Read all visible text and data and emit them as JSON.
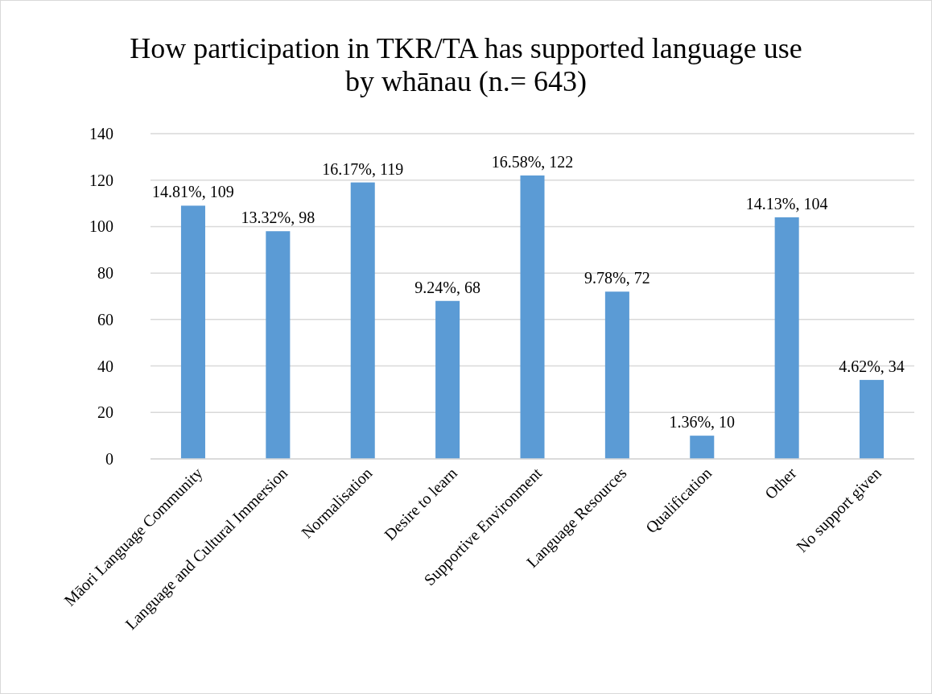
{
  "chart_data": {
    "type": "bar",
    "title": "How participation in TKR/TA has supported language use\nby whānau (n.= 643)",
    "categories": [
      "Māori Language Community",
      "Language and Cultural Immersion",
      "Normalisation",
      "Desire to learn",
      "Supportive Environment",
      "Language Resources",
      "Qualification",
      "Other",
      "No support given"
    ],
    "values": [
      109,
      98,
      119,
      68,
      122,
      72,
      10,
      104,
      34
    ],
    "value_labels": [
      "14.81%, 109",
      "13.32%, 98",
      "16.17%, 119",
      "9.24%, 68",
      "16.58%, 122",
      "9.78%, 72",
      "1.36%, 10",
      "14.13%, 104",
      "4.62%, 34"
    ],
    "color": "#5b9bd5",
    "ylim": [
      0,
      140
    ],
    "yticks": [
      0,
      20,
      40,
      60,
      80,
      100,
      120,
      140
    ],
    "grid": "y"
  }
}
